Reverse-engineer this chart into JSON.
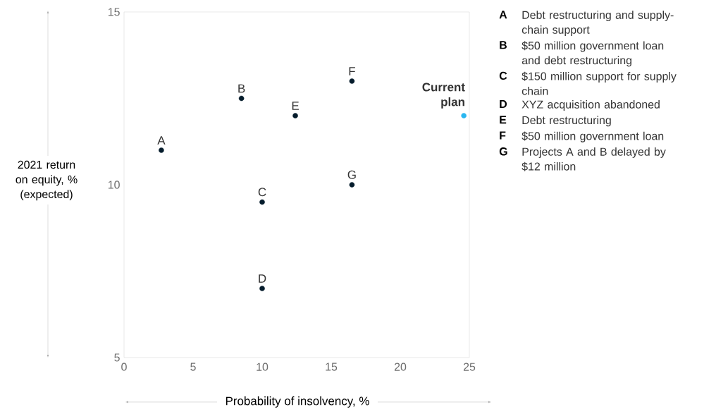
{
  "chart_data": {
    "type": "scatter",
    "xlabel": "Probability of insolvency, %",
    "ylabel": "2021 return on equity, % (expected)",
    "x": [
      2.7,
      8.5,
      10,
      10,
      12.4,
      16.5,
      16.5,
      24.6
    ],
    "values": [
      11,
      12.5,
      9.5,
      7,
      12,
      13,
      10,
      12
    ],
    "colors": [
      "#051c2c",
      "#051c2c",
      "#051c2c",
      "#051c2c",
      "#051c2c",
      "#051c2c",
      "#051c2c",
      "#29b6f0"
    ],
    "marker": "circle",
    "xlim": [
      0,
      25
    ],
    "xticks": [
      0,
      5,
      10,
      15,
      20,
      25
    ],
    "ylim": [
      5,
      15
    ],
    "yticks": [
      5,
      10,
      15
    ],
    "annotations": [
      {
        "text": "A",
        "x": 2.7,
        "y": 11
      },
      {
        "text": "B",
        "x": 8.5,
        "y": 12.5
      },
      {
        "text": "C",
        "x": 10,
        "y": 9.5
      },
      {
        "text": "D",
        "x": 10,
        "y": 7
      },
      {
        "text": "E",
        "x": 12.4,
        "y": 12
      },
      {
        "text": "F",
        "x": 16.5,
        "y": 13
      },
      {
        "text": "G",
        "x": 16.5,
        "y": 10
      },
      {
        "text": "Current plan",
        "x": 24.6,
        "y": 12
      },
      "A",
      "Debt restructuring and supply-chain support",
      "B",
      "$50 million government loan and debt restructuring",
      "C",
      "$150 million support for supply chain",
      "D",
      "XYZ acquisition abandoned",
      "E",
      "Debt restructuring",
      "F",
      "$50 million government loan",
      "G",
      "Projects A and B delayed by $12 million"
    ]
  }
}
